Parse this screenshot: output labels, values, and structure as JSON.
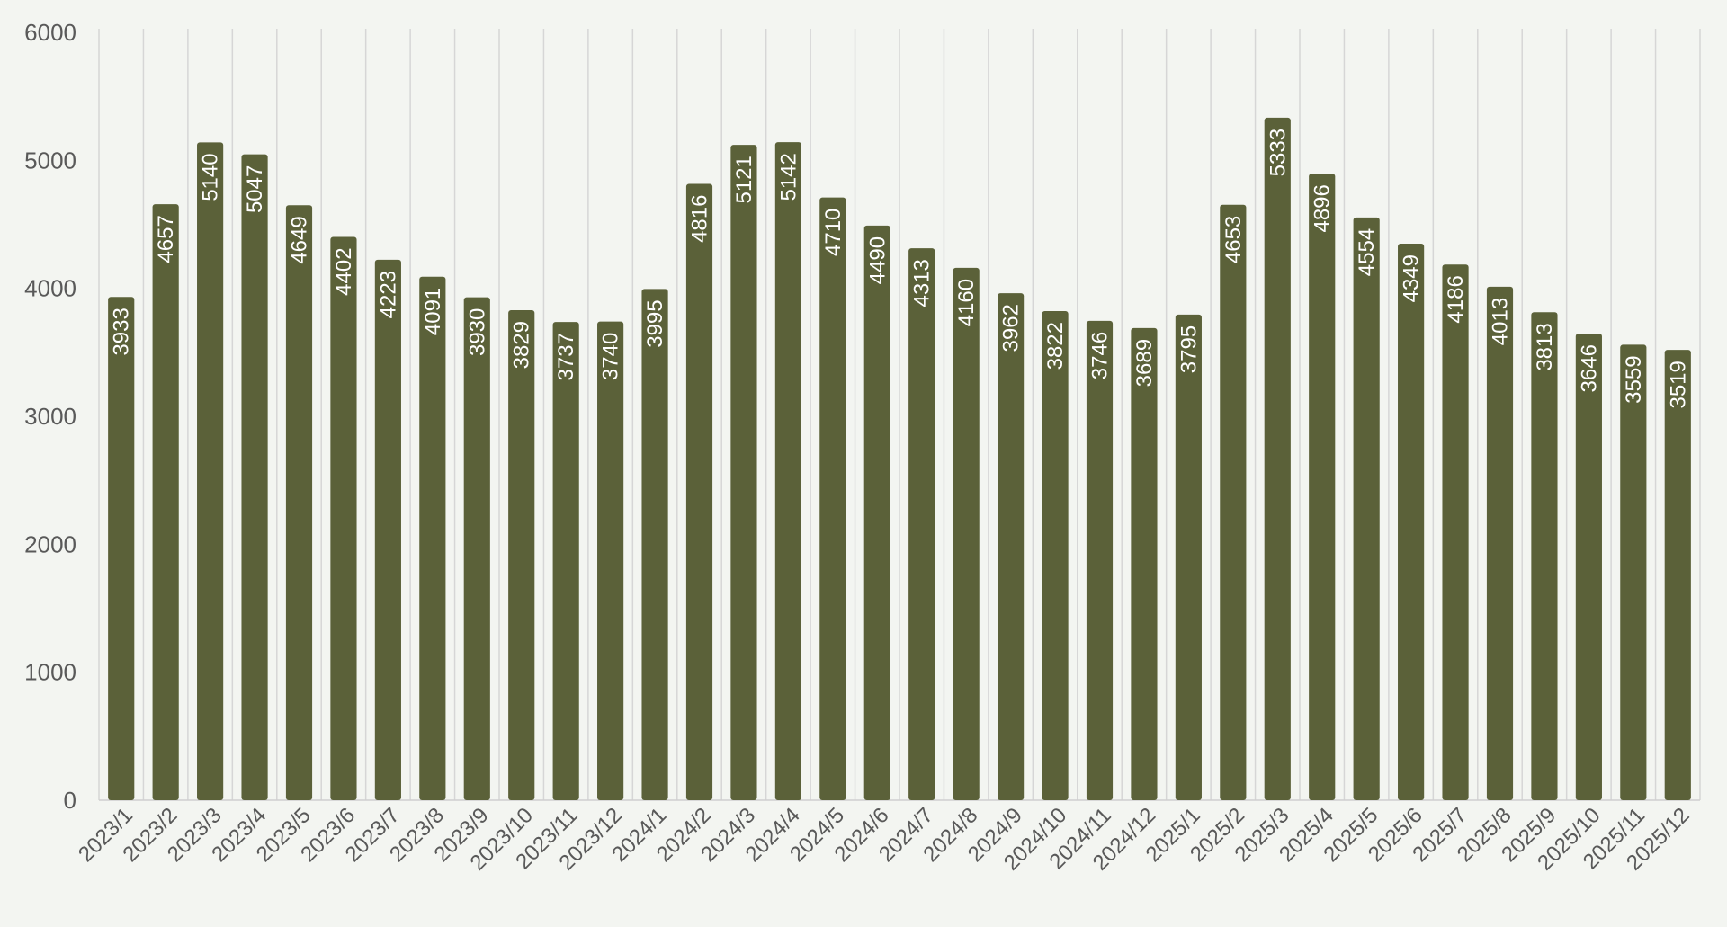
{
  "chart_data": {
    "type": "bar",
    "title": "",
    "xlabel": "",
    "ylabel": "",
    "ylim": [
      0,
      6000
    ],
    "yticks": [
      0,
      1000,
      2000,
      3000,
      4000,
      5000,
      6000
    ],
    "grid": "vertical",
    "legend": "none",
    "bar_color": "#5b6139",
    "data_label_color": "#ffffff",
    "categories": [
      "2023/1",
      "2023/2",
      "2023/3",
      "2023/4",
      "2023/5",
      "2023/6",
      "2023/7",
      "2023/8",
      "2023/9",
      "2023/10",
      "2023/11",
      "2023/12",
      "2024/1",
      "2024/2",
      "2024/3",
      "2024/4",
      "2024/5",
      "2024/6",
      "2024/7",
      "2024/8",
      "2024/9",
      "2024/10",
      "2024/11",
      "2024/12",
      "2025/1",
      "2025/2",
      "2025/3",
      "2025/4",
      "2025/5",
      "2025/6",
      "2025/7",
      "2025/8",
      "2025/9",
      "2025/10",
      "2025/11",
      "2025/12"
    ],
    "values": [
      3933,
      4657,
      5140,
      5047,
      4649,
      4402,
      4223,
      4091,
      3930,
      3829,
      3737,
      3740,
      3995,
      4816,
      5121,
      5142,
      4710,
      4490,
      4313,
      4160,
      3962,
      3822,
      3746,
      3689,
      3795,
      4653,
      5333,
      4896,
      4554,
      4349,
      4186,
      4013,
      3813,
      3646,
      3559,
      3519
    ]
  }
}
